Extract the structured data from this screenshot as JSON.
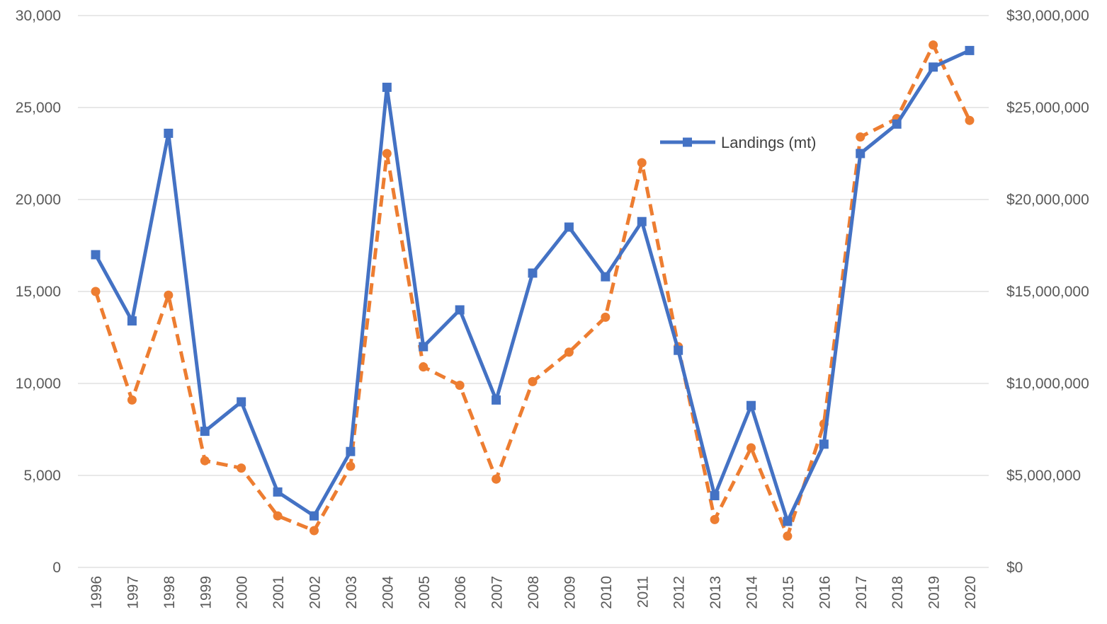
{
  "chart_data": {
    "type": "line",
    "x": [
      "1996",
      "1997",
      "1998",
      "1999",
      "2000",
      "2001",
      "2002",
      "2003",
      "2004",
      "2005",
      "2006",
      "2007",
      "2008",
      "2009",
      "2010",
      "2011",
      "2012",
      "2013",
      "2014",
      "2015",
      "2016",
      "2017",
      "2018",
      "2019",
      "2020"
    ],
    "y_left": {
      "ylim": [
        0,
        30000
      ],
      "ticks": [
        0,
        5000,
        10000,
        15000,
        20000,
        25000,
        30000
      ],
      "tick_labels": [
        "0",
        "5,000",
        "10,000",
        "15,000",
        "20,000",
        "25,000",
        "30,000"
      ]
    },
    "y_right": {
      "ylim": [
        0,
        30000000
      ],
      "ticks": [
        0,
        5000000,
        10000000,
        15000000,
        20000000,
        25000000,
        30000000
      ],
      "tick_labels": [
        "$0",
        "$5,000,000",
        "$10,000,000",
        "$15,000,000",
        "$20,000,000",
        "$25,000,000",
        "$30,000,000"
      ]
    },
    "series": [
      {
        "name": "Landings (mt)",
        "axis": "left",
        "color": "#4472C4",
        "line_style": "solid",
        "marker": "square",
        "values": [
          17000,
          13400,
          23600,
          7400,
          9000,
          4100,
          2800,
          6300,
          26100,
          12000,
          14000,
          9100,
          16000,
          18500,
          15800,
          18800,
          11800,
          3900,
          8800,
          2500,
          6700,
          22500,
          24100,
          27200,
          28100
        ]
      },
      {
        "axis": "right",
        "color": "#ED7D31",
        "line_style": "dashed",
        "marker": "circle",
        "values": [
          15000000,
          9100000,
          14800000,
          5800000,
          5400000,
          2800000,
          2000000,
          5500000,
          22500000,
          10900000,
          9900000,
          4800000,
          10100000,
          11700000,
          13600000,
          22000000,
          12000000,
          2600000,
          6500000,
          1700000,
          7800000,
          23400000,
          24400000,
          28400000,
          24300000
        ]
      }
    ],
    "grid": true,
    "legend": {
      "position": "inside-top-center",
      "entries": [
        "Landings (mt)"
      ]
    }
  }
}
